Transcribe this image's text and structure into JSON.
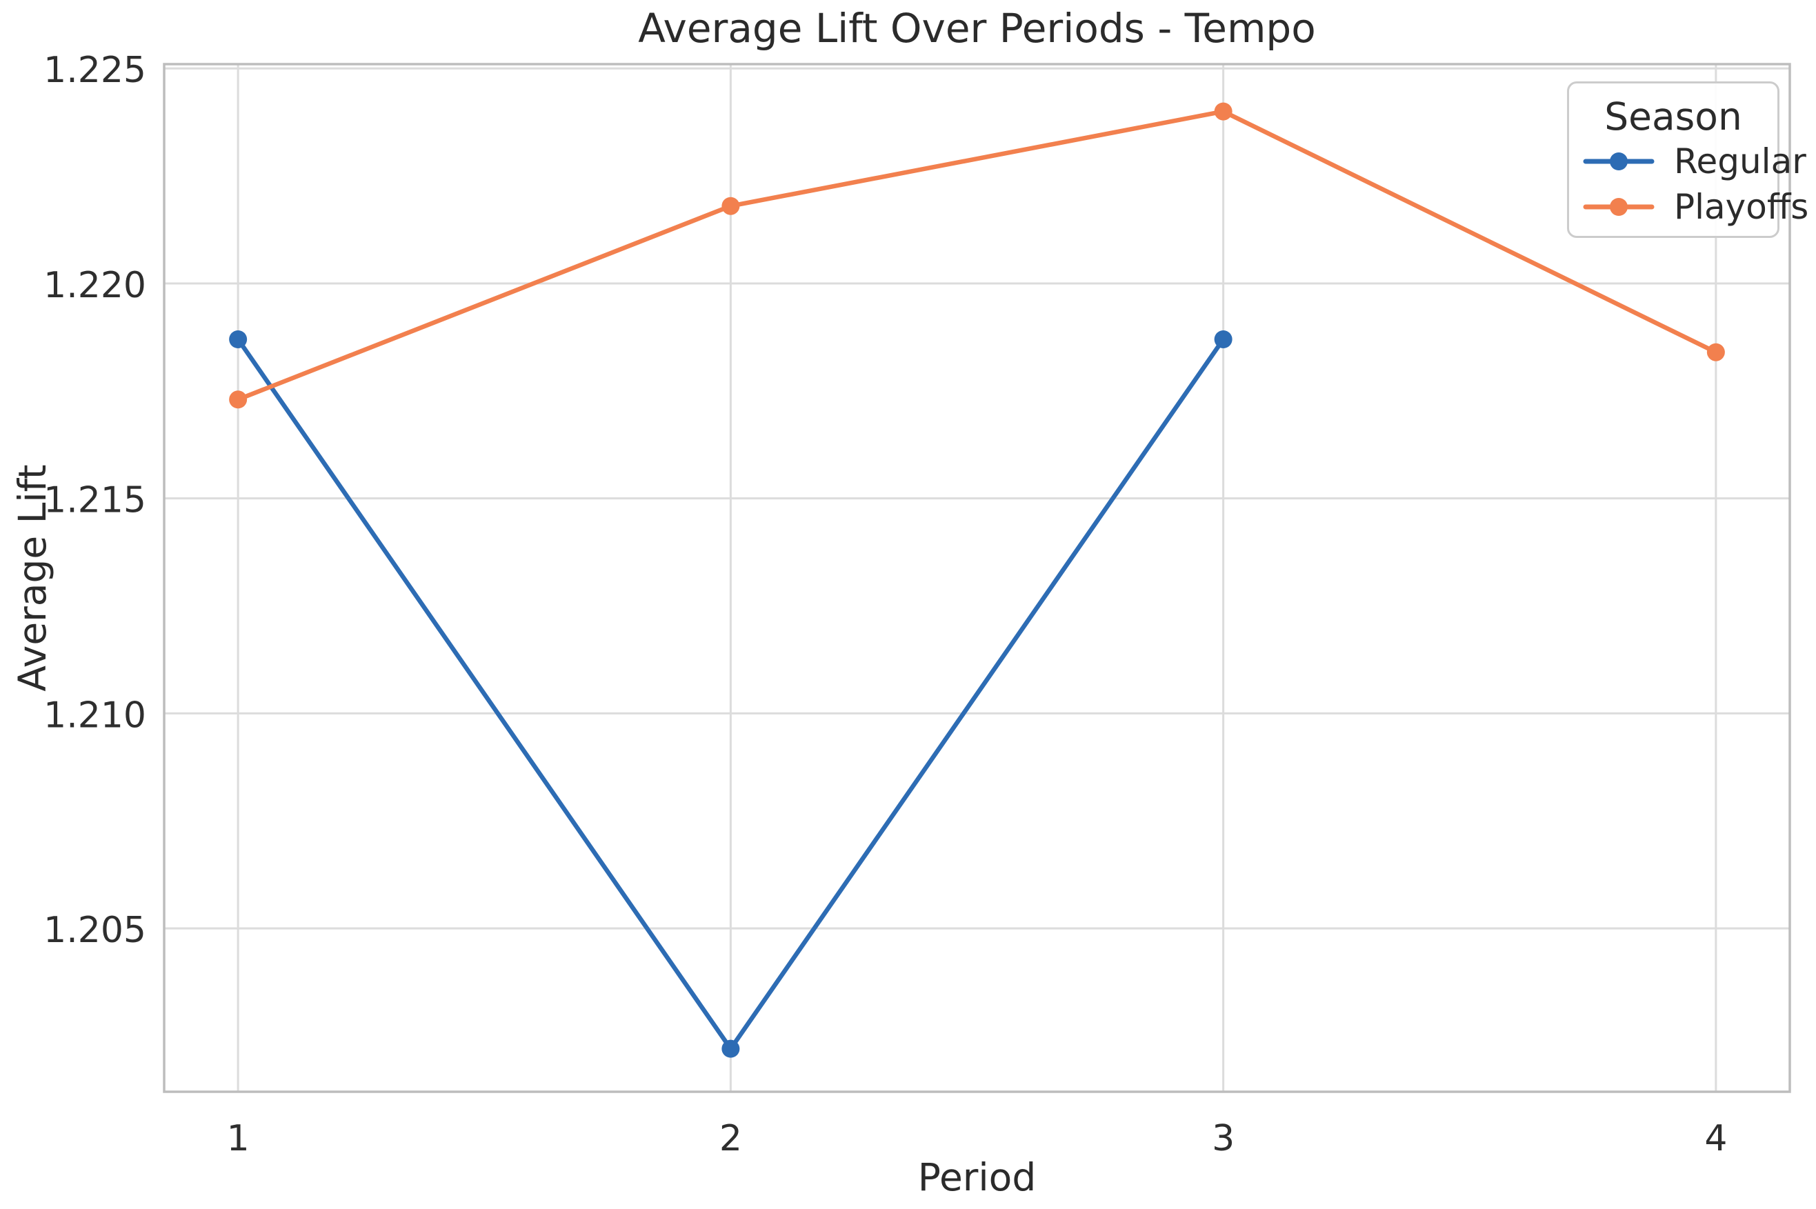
{
  "chart_data": {
    "type": "line",
    "title": "Average Lift Over Periods - Tempo",
    "xlabel": "Period",
    "ylabel": "Average Lift",
    "xlim": [
      0.85,
      4.15
    ],
    "ylim": [
      1.2012,
      1.2251
    ],
    "grid": true,
    "background_color": "#ffffff",
    "colors": {
      "grid": "#dcdcdc",
      "spine": "#bdbdbd",
      "text": "#2b2b2b",
      "legend_border": "#cccccc"
    },
    "x_ticks": [
      {
        "value": 1,
        "label": "1"
      },
      {
        "value": 2,
        "label": "2"
      },
      {
        "value": 3,
        "label": "3"
      },
      {
        "value": 4,
        "label": "4"
      }
    ],
    "y_ticks": [
      {
        "value": 1.205,
        "label": "1.205"
      },
      {
        "value": 1.21,
        "label": "1.210"
      },
      {
        "value": 1.215,
        "label": "1.215"
      },
      {
        "value": 1.22,
        "label": "1.220"
      },
      {
        "value": 1.225,
        "label": "1.225"
      }
    ],
    "legend": {
      "title": "Season",
      "position": "upper right"
    },
    "series": [
      {
        "name": "Regular",
        "color": "#2d6cb4",
        "marker": "o",
        "x": [
          1,
          2,
          3
        ],
        "y": [
          1.2187,
          1.2022,
          1.2187
        ]
      },
      {
        "name": "Playoffs",
        "color": "#f2804e",
        "marker": "o",
        "x": [
          1,
          2,
          3,
          4
        ],
        "y": [
          1.2173,
          1.2218,
          1.224,
          1.2184
        ]
      }
    ]
  }
}
